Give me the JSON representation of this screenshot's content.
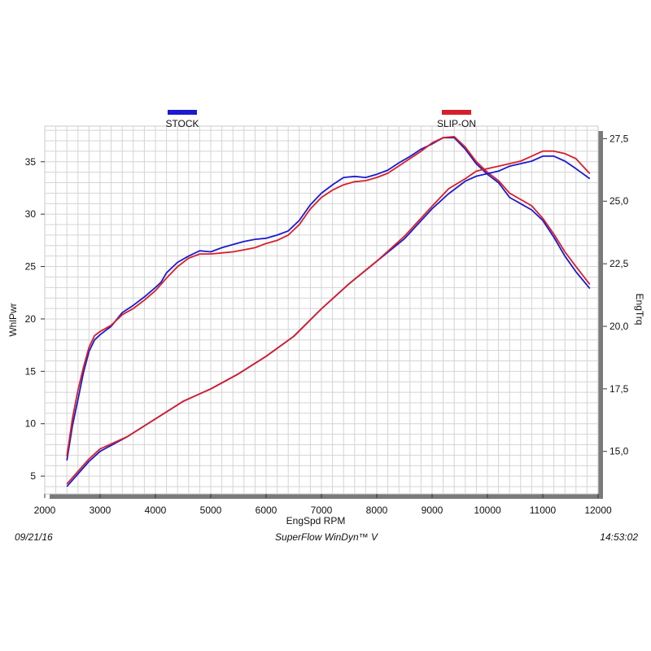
{
  "chart_data": {
    "type": "line",
    "x_axis": {
      "label": "EngSpd RPM",
      "range": [
        2000,
        12000
      ],
      "ticks": [
        2000,
        3000,
        4000,
        5000,
        6000,
        7000,
        8000,
        9000,
        10000,
        11000,
        12000
      ],
      "tick_labels": [
        "2000",
        "3000",
        "4000",
        "5000",
        "6000",
        "7000",
        "8000",
        "9000",
        "10000",
        "11000",
        "12000"
      ]
    },
    "y_axis_left": {
      "label": "WhlPwr",
      "range": [
        3.3,
        38.4
      ],
      "ticks": [
        5,
        10,
        15,
        20,
        25,
        30,
        35
      ],
      "tick_labels": [
        "5",
        "10",
        "15",
        "20",
        "25",
        "30",
        "35"
      ]
    },
    "y_axis_right": {
      "label": "EngTrq",
      "range": [
        13.3,
        28.0
      ],
      "ticks": [
        15.0,
        17.5,
        20.0,
        22.5,
        25.0,
        27.5
      ],
      "tick_labels": [
        "15,0",
        "17,5",
        "20,0",
        "22,5",
        "25,0",
        "27,5"
      ]
    },
    "grid": true,
    "legend": [
      {
        "name": "STOCK",
        "color": "#1b1bd0"
      },
      {
        "name": "SLIP-ON",
        "color": "#d61f2a"
      }
    ],
    "series": [
      {
        "name": "STOCK",
        "quantity": "WhlPwr",
        "axis": "left",
        "color": "#1b1bd0",
        "x": [
          2400,
          2500,
          2600,
          2700,
          2800,
          2900,
          3000,
          3200,
          3400,
          3600,
          3800,
          4000,
          4100,
          4200,
          4400,
          4600,
          4800,
          5000,
          5200,
          5400,
          5600,
          5800,
          6000,
          6200,
          6400,
          6600,
          6800,
          7000,
          7200,
          7400,
          7600,
          7800,
          8000,
          8200,
          8400,
          8600,
          8800,
          9000,
          9200,
          9400,
          9600,
          9800,
          10000,
          10200,
          10400,
          10600,
          10800,
          11000,
          11200,
          11400,
          11600,
          11850
        ],
        "y": [
          6.5,
          9.8,
          12.3,
          14.9,
          16.9,
          18.0,
          18.5,
          19.3,
          20.6,
          21.3,
          22.1,
          23.0,
          23.5,
          24.4,
          25.4,
          26.0,
          26.5,
          26.4,
          26.8,
          27.1,
          27.4,
          27.6,
          27.7,
          28.0,
          28.4,
          29.4,
          30.9,
          32.0,
          32.8,
          33.5,
          33.6,
          33.5,
          33.8,
          34.2,
          34.9,
          35.5,
          36.2,
          36.7,
          37.3,
          37.3,
          36.2,
          34.8,
          33.8,
          33.0,
          31.6,
          31.0,
          30.4,
          29.4,
          27.8,
          26.0,
          24.5,
          22.9
        ]
      },
      {
        "name": "SLIP-ON",
        "quantity": "WhlPwr",
        "axis": "left",
        "color": "#d61f2a",
        "x": [
          2400,
          2500,
          2600,
          2700,
          2800,
          2900,
          3000,
          3200,
          3400,
          3600,
          3800,
          4000,
          4100,
          4200,
          4400,
          4600,
          4800,
          5000,
          5200,
          5400,
          5600,
          5800,
          6000,
          6200,
          6400,
          6600,
          6800,
          7000,
          7200,
          7400,
          7600,
          7800,
          8000,
          8200,
          8400,
          8600,
          8800,
          9000,
          9200,
          9400,
          9600,
          9800,
          10000,
          10200,
          10400,
          10600,
          10800,
          11000,
          11200,
          11400,
          11600,
          11850
        ],
        "y": [
          6.9,
          10.5,
          13.2,
          15.4,
          17.3,
          18.4,
          18.8,
          19.4,
          20.4,
          21.0,
          21.8,
          22.7,
          23.3,
          23.9,
          25.0,
          25.8,
          26.2,
          26.2,
          26.3,
          26.4,
          26.6,
          26.8,
          27.2,
          27.5,
          28.0,
          29.0,
          30.5,
          31.6,
          32.3,
          32.8,
          33.1,
          33.2,
          33.5,
          33.9,
          34.6,
          35.3,
          36.0,
          36.8,
          37.3,
          37.4,
          36.4,
          35.0,
          34.0,
          33.2,
          32.0,
          31.4,
          30.8,
          29.6,
          28.1,
          26.4,
          25.0,
          23.3
        ]
      },
      {
        "name": "STOCK",
        "quantity": "EngTrq",
        "axis": "right",
        "color": "#1b1bd0",
        "x": [
          2400,
          2600,
          2800,
          3000,
          3500,
          4000,
          4500,
          5000,
          5500,
          6000,
          6500,
          7000,
          7500,
          8000,
          8500,
          9000,
          9300,
          9600,
          9800,
          10000,
          10200,
          10400,
          10600,
          10800,
          11000,
          11200,
          11400,
          11600,
          11850
        ],
        "y": [
          13.6,
          14.1,
          14.6,
          15.0,
          15.6,
          16.3,
          17.0,
          17.5,
          18.1,
          18.8,
          19.6,
          20.7,
          21.7,
          22.6,
          23.5,
          24.7,
          25.3,
          25.8,
          26.0,
          26.1,
          26.2,
          26.4,
          26.5,
          26.6,
          26.8,
          26.8,
          26.6,
          26.3,
          25.9
        ]
      },
      {
        "name": "SLIP-ON",
        "quantity": "EngTrq",
        "axis": "right",
        "color": "#d61f2a",
        "x": [
          2400,
          2600,
          2800,
          3000,
          3500,
          4000,
          4500,
          5000,
          5500,
          6000,
          6500,
          7000,
          7500,
          8000,
          8500,
          9000,
          9300,
          9600,
          9800,
          10000,
          10200,
          10400,
          10600,
          10800,
          11000,
          11200,
          11400,
          11600,
          11850
        ],
        "y": [
          13.7,
          14.2,
          14.7,
          15.1,
          15.6,
          16.3,
          17.0,
          17.5,
          18.1,
          18.8,
          19.6,
          20.7,
          21.7,
          22.6,
          23.6,
          24.8,
          25.5,
          25.9,
          26.2,
          26.3,
          26.4,
          26.5,
          26.6,
          26.8,
          27.0,
          27.0,
          26.9,
          26.7,
          26.1
        ]
      }
    ]
  },
  "footer": {
    "date": "09/21/16",
    "software": "SuperFlow WinDyn™ V",
    "time": "14:53:02"
  }
}
